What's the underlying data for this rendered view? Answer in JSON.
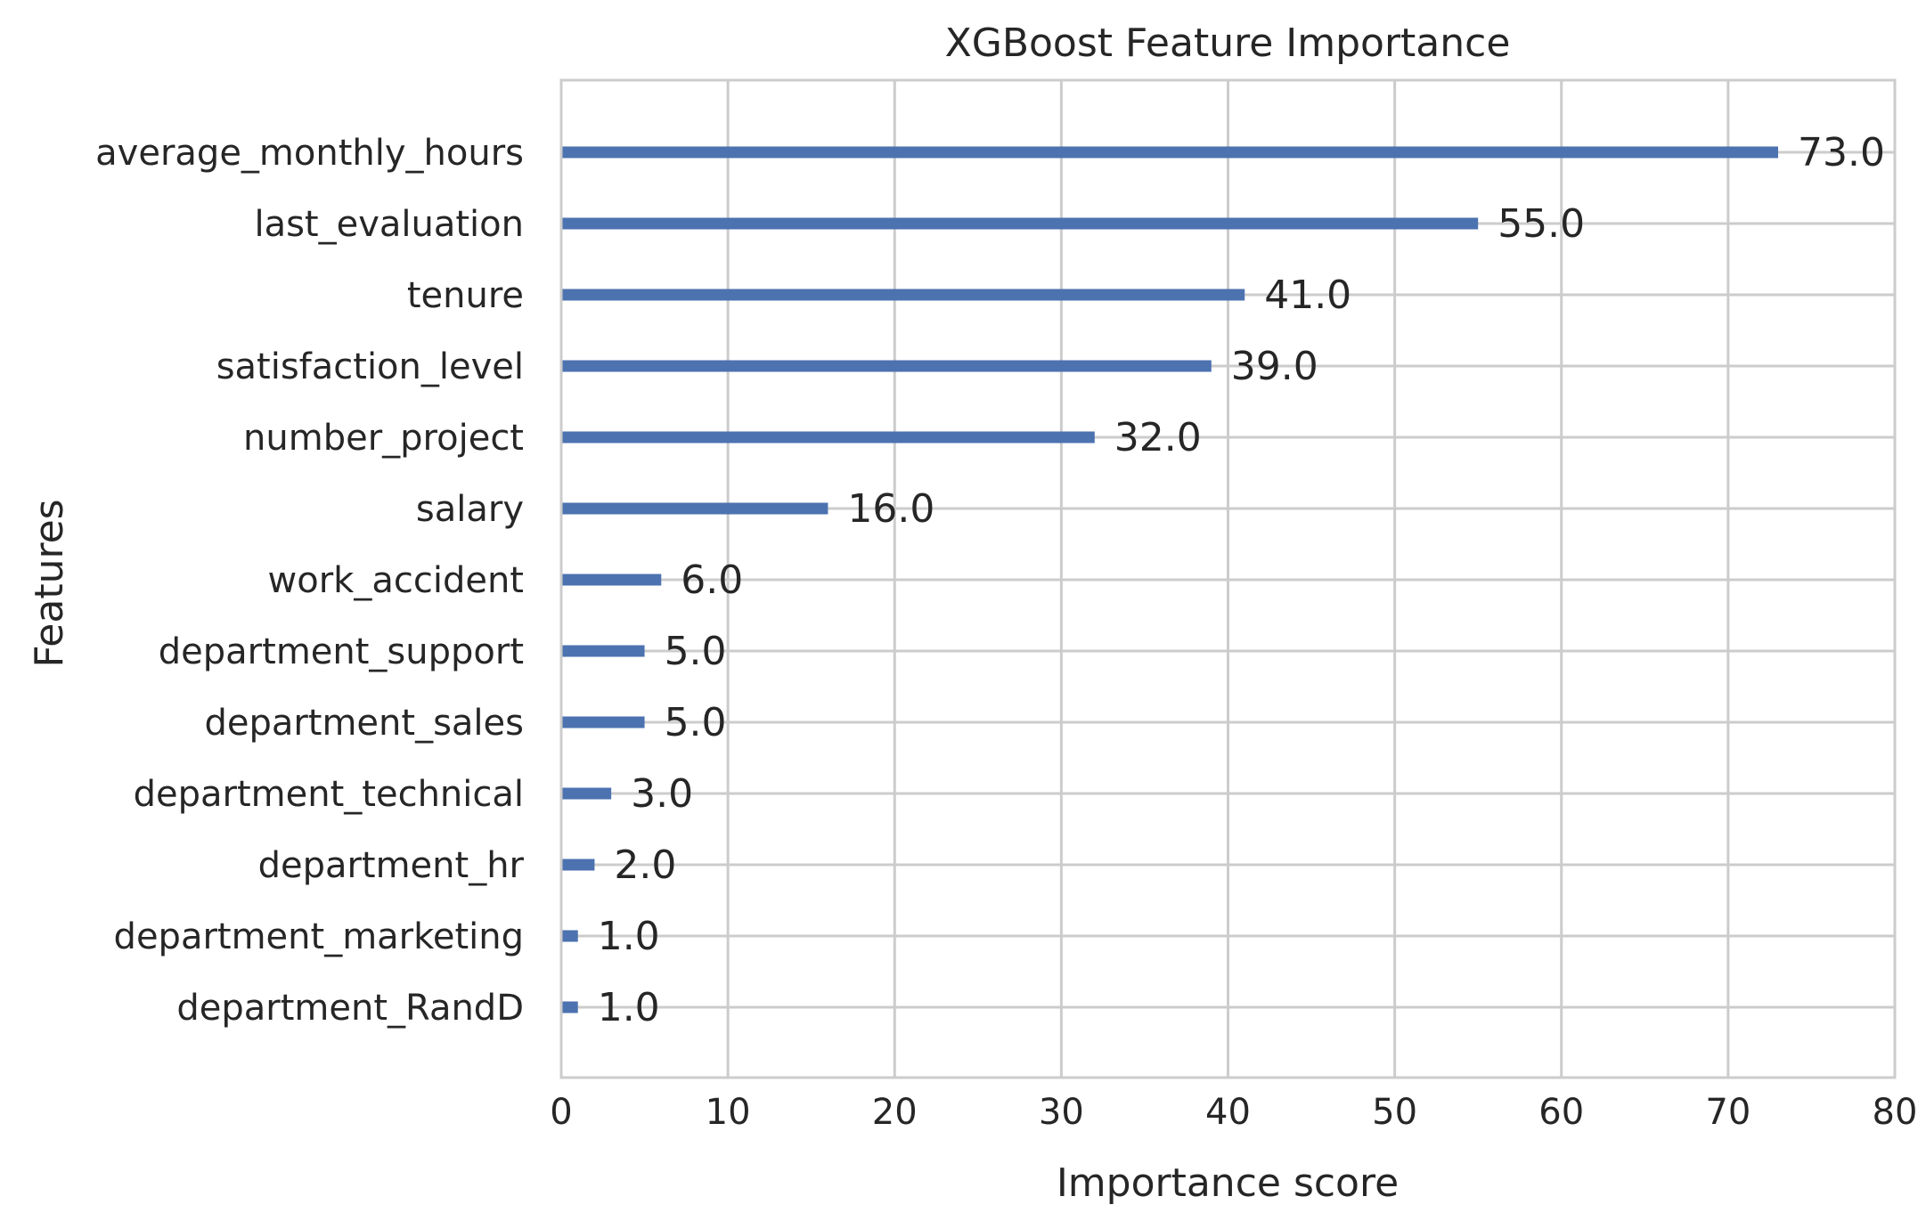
{
  "chart_data": {
    "type": "bar",
    "orientation": "horizontal",
    "title": "XGBoost Feature Importance",
    "xlabel": "Importance score",
    "ylabel": "Features",
    "categories": [
      "average_monthly_hours",
      "last_evaluation",
      "tenure",
      "satisfaction_level",
      "number_project",
      "salary",
      "work_accident",
      "department_support",
      "department_sales",
      "department_technical",
      "department_hr",
      "department_marketing",
      "department_RandD"
    ],
    "values": [
      73,
      55,
      41,
      39,
      32,
      16,
      6,
      5,
      5,
      3,
      2,
      1,
      1
    ],
    "value_labels": [
      "73.0",
      "55.0",
      "41.0",
      "39.0",
      "32.0",
      "16.0",
      "6.0",
      "5.0",
      "5.0",
      "3.0",
      "2.0",
      "1.0",
      "1.0"
    ],
    "xlim": [
      0,
      80
    ],
    "xticks": [
      0,
      10,
      20,
      30,
      40,
      50,
      60,
      70,
      80
    ],
    "grid": true,
    "bar_color": "#4c72b0",
    "grid_color": "#cccccc"
  }
}
